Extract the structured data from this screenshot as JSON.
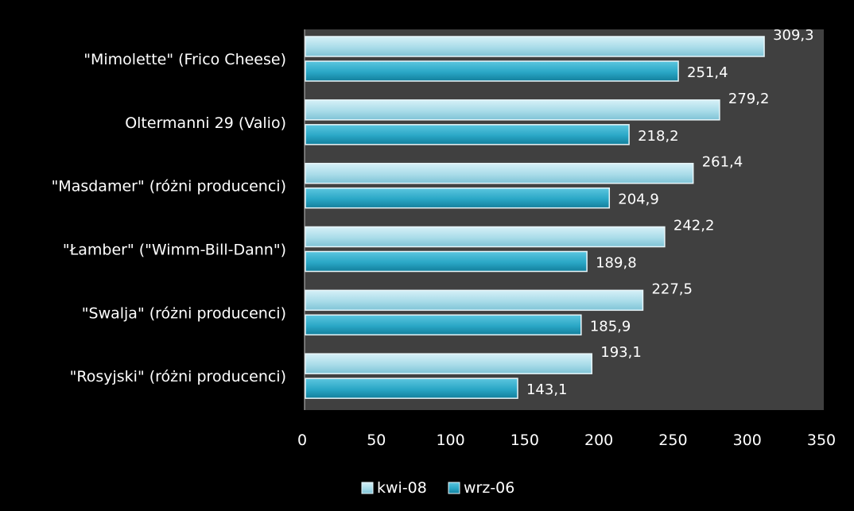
{
  "chart_data": {
    "type": "bar",
    "orientation": "horizontal",
    "categories": [
      "\"Mimolette\" (Frico Cheese)",
      "Oltermanni 29 (Valio)",
      "\"Masdamer\" (różni producenci)",
      "\"Łamber\" (\"Wimm-Bill-Dann\")",
      "\"Swalja\" (różni producenci)",
      "\"Rosyjski\" (różni producenci)"
    ],
    "series": [
      {
        "name": "kwi-08",
        "values": [
          309.3,
          279.2,
          261.4,
          242.2,
          227.5,
          193.1
        ],
        "labels": [
          "309,3",
          "279,2",
          "261,4",
          "242,2",
          "227,5",
          "193,1"
        ],
        "color": "#a9dce9"
      },
      {
        "name": "wrz-06",
        "values": [
          251.4,
          218.2,
          204.9,
          189.8,
          185.9,
          143.1
        ],
        "labels": [
          "251,4",
          "218,2",
          "204,9",
          "189,8",
          "185,9",
          "143,1"
        ],
        "color": "#2aa7c6"
      }
    ],
    "xlim": [
      0,
      350
    ],
    "xticks": [
      "0",
      "50",
      "100",
      "150",
      "200",
      "250",
      "300",
      "350"
    ],
    "legend": "bottom",
    "grid": false,
    "plot_background": "#404040",
    "page_background": "#000000"
  }
}
